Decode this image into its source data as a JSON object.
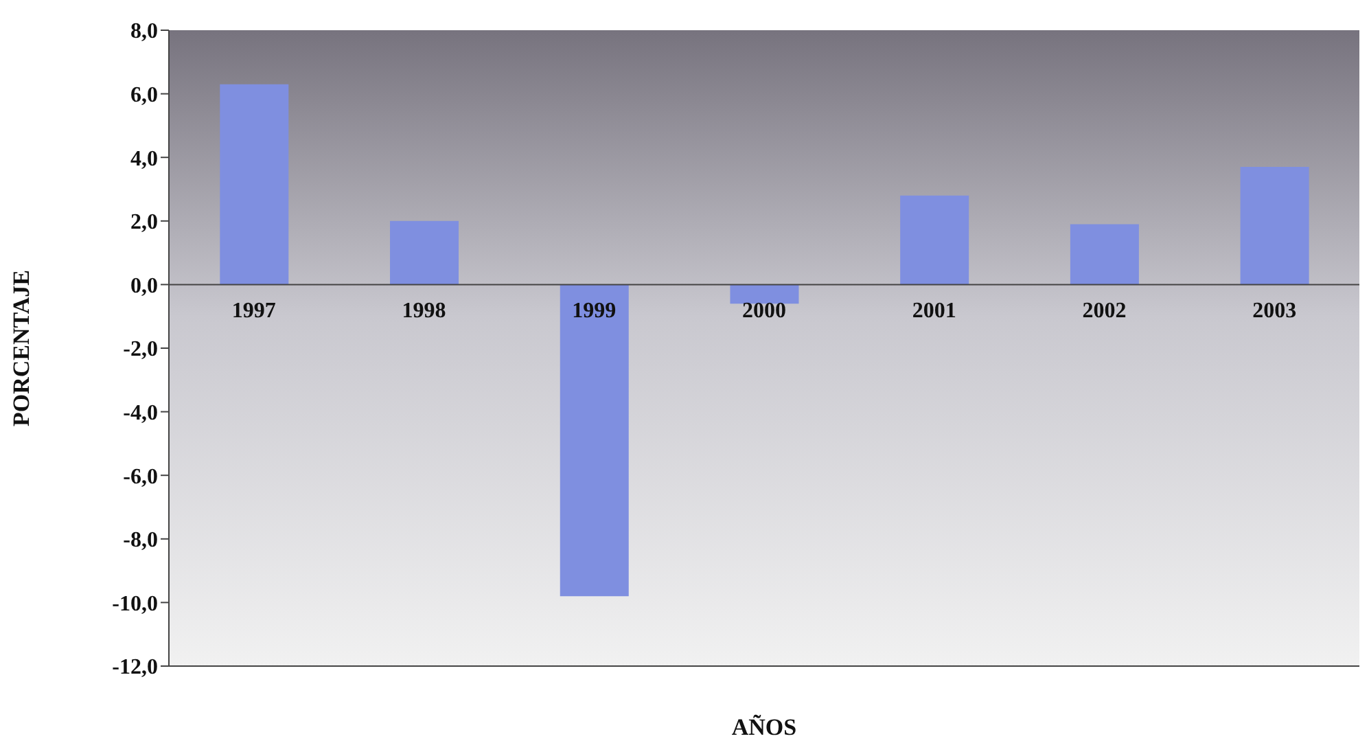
{
  "chart_data": {
    "type": "bar",
    "xlabel": "AÑOS",
    "ylabel": "PORCENTAJE",
    "categories": [
      "1997",
      "1998",
      "1999",
      "2000",
      "2001",
      "2002",
      "2003"
    ],
    "values": [
      6.3,
      2.0,
      -9.8,
      -0.6,
      2.8,
      1.9,
      3.7
    ],
    "color": "#7f8fe0",
    "ylim": [
      -12,
      8
    ],
    "yticks": [
      {
        "value": -12,
        "label": "-12,0"
      },
      {
        "value": -10,
        "label": "-10,0"
      },
      {
        "value": -8,
        "label": "-8,0"
      },
      {
        "value": -6,
        "label": "-6,0"
      },
      {
        "value": -4,
        "label": "-4,0"
      },
      {
        "value": -2,
        "label": "-2,0"
      },
      {
        "value": 0,
        "label": "0,0"
      },
      {
        "value": 2,
        "label": "2,0"
      },
      {
        "value": 4,
        "label": "4,0"
      },
      {
        "value": 6,
        "label": "6,0"
      },
      {
        "value": 8,
        "label": "8,0"
      }
    ],
    "grid": false,
    "legend": false
  }
}
